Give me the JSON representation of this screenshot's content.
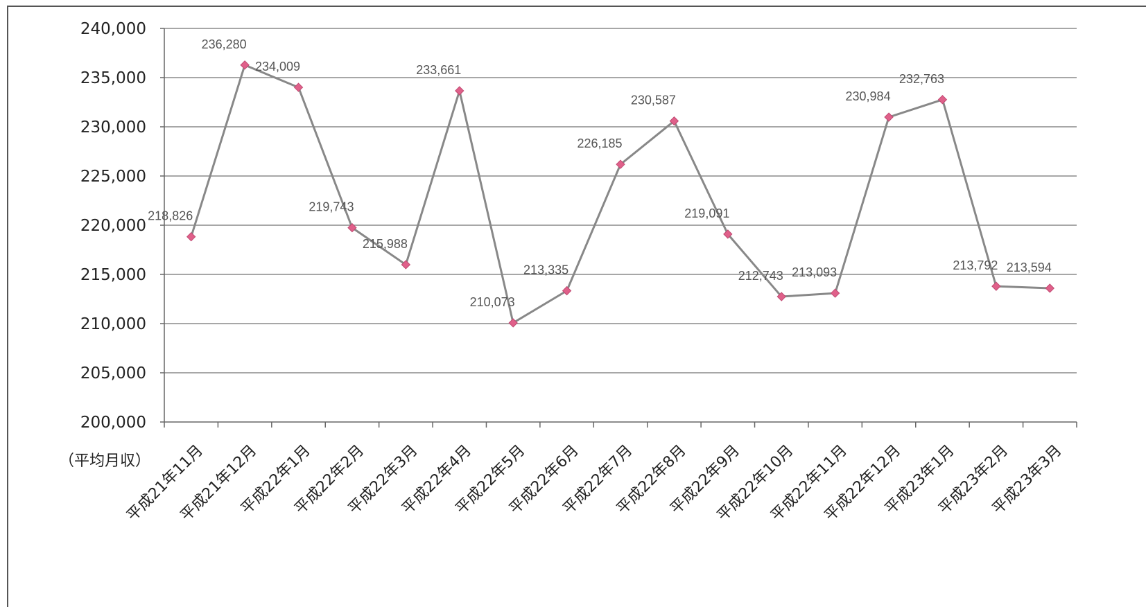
{
  "chart_data": {
    "type": "line",
    "ylabel": "（平均月収）",
    "ylim": [
      200000,
      240000
    ],
    "yticks": [
      200000,
      205000,
      210000,
      215000,
      220000,
      225000,
      230000,
      235000,
      240000
    ],
    "ytick_labels": [
      "200,000",
      "205,000",
      "210,000",
      "215,000",
      "220,000",
      "225,000",
      "230,000",
      "235,000",
      "240,000"
    ],
    "grid": true,
    "categories": [
      "平成21年11月",
      "平成21年12月",
      "平成22年1月",
      "平成22年2月",
      "平成22年3月",
      "平成22年4月",
      "平成22年5月",
      "平成22年6月",
      "平成22年7月",
      "平成22年8月",
      "平成22年9月",
      "平成22年10月",
      "平成22年11月",
      "平成22年12月",
      "平成23年1月",
      "平成23年2月",
      "平成23年3月"
    ],
    "series": [
      {
        "values": [
          218826,
          236280,
          234009,
          219743,
          215988,
          233661,
          210073,
          213335,
          226185,
          230587,
          219091,
          212743,
          213093,
          230984,
          232763,
          213792,
          213594
        ],
        "data_labels": [
          "218,826",
          "236,280",
          "234,009",
          "219,743",
          "215,988",
          "233,661",
          "210,073",
          "213,335",
          "226,185",
          "230,587",
          "219,091",
          "212,743",
          "213,093",
          "230,984",
          "232,763",
          "213,792",
          "213,594"
        ],
        "line_color": "#888888",
        "marker_color": "#e0608a"
      }
    ]
  }
}
